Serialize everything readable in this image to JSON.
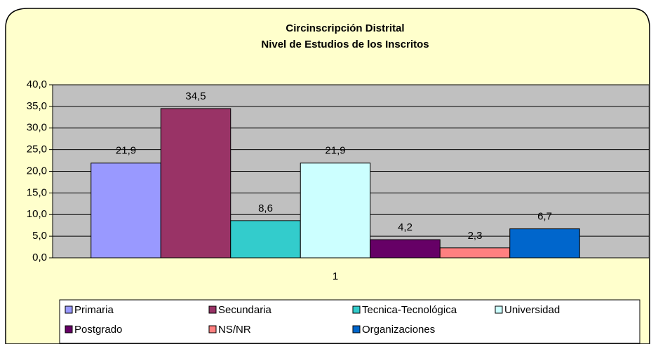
{
  "chart_data": {
    "type": "bar",
    "title": [
      "Circinscripción Distrital",
      "Nivel de Estudios de los Inscritos"
    ],
    "categories": [
      "1"
    ],
    "series": [
      {
        "name": "Primaria",
        "color": "#9999ff",
        "values": [
          21.9
        ],
        "value_labels": [
          "21,9"
        ]
      },
      {
        "name": "Secundaria",
        "color": "#993366",
        "values": [
          34.5
        ],
        "value_labels": [
          "34,5"
        ]
      },
      {
        "name": "Tecnica-Tecnológica",
        "color": "#33cccc",
        "values": [
          8.6
        ],
        "value_labels": [
          "8,6"
        ]
      },
      {
        "name": "Universidad",
        "color": "#ccffff",
        "values": [
          21.9
        ],
        "value_labels": [
          "21,9"
        ]
      },
      {
        "name": "Postgrado",
        "color": "#660066",
        "values": [
          4.2
        ],
        "value_labels": [
          "4,2"
        ]
      },
      {
        "name": "NS/NR",
        "color": "#ff8080",
        "values": [
          2.3
        ],
        "value_labels": [
          "2,3"
        ]
      },
      {
        "name": "Organizaciones",
        "color": "#0066cc",
        "values": [
          6.7
        ],
        "value_labels": [
          "6,7"
        ]
      }
    ],
    "ylim": [
      0,
      40
    ],
    "yticks": [
      {
        "value": 0,
        "label": "0,0"
      },
      {
        "value": 5,
        "label": "5,0"
      },
      {
        "value": 10,
        "label": "10,0"
      },
      {
        "value": 15,
        "label": "15,0"
      },
      {
        "value": 20,
        "label": "20,0"
      },
      {
        "value": 25,
        "label": "25,0"
      },
      {
        "value": 30,
        "label": "30,0"
      },
      {
        "value": 35,
        "label": "35,0"
      },
      {
        "value": 40,
        "label": "40,0"
      }
    ],
    "grid": true,
    "legend": "bottom"
  }
}
